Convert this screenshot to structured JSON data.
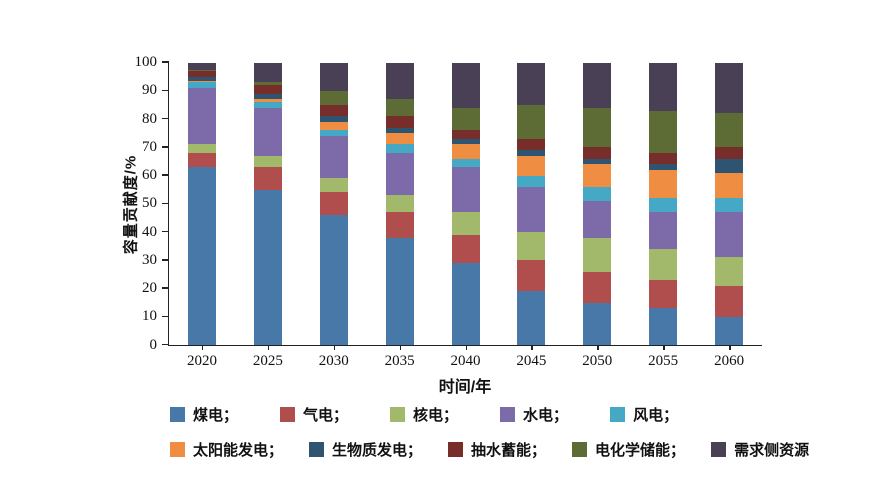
{
  "chart_data": {
    "type": "bar",
    "variant": "stacked-100-percent",
    "title": "",
    "xlabel": "时间/年",
    "ylabel": "容量贡献度/%",
    "ylim": [
      0,
      100
    ],
    "y_ticks": [
      0,
      10,
      20,
      30,
      40,
      50,
      60,
      70,
      80,
      90,
      100
    ],
    "grid": false,
    "legend_position": "bottom",
    "categories": [
      "2020",
      "2025",
      "2030",
      "2035",
      "2040",
      "2045",
      "2050",
      "2055",
      "2060"
    ],
    "series": [
      {
        "key": "coal",
        "name": "煤电",
        "legend_label": "煤电；",
        "color": "#4878a8",
        "values": [
          63,
          55,
          46,
          38,
          29,
          19,
          15,
          13,
          10
        ]
      },
      {
        "key": "gas",
        "name": "气电",
        "legend_label": "气电；",
        "color": "#b04e4e",
        "values": [
          5,
          8,
          8,
          9,
          10,
          11,
          11,
          10,
          11
        ]
      },
      {
        "key": "nuclear",
        "name": "核电",
        "legend_label": "核电；",
        "color": "#a2b86a",
        "values": [
          3,
          4,
          5,
          6,
          8,
          10,
          12,
          11,
          10
        ]
      },
      {
        "key": "hydro",
        "name": "水电",
        "legend_label": "水电；",
        "color": "#7d6aa8",
        "values": [
          20,
          17,
          15,
          15,
          16,
          16,
          13,
          13,
          16
        ]
      },
      {
        "key": "wind",
        "name": "风电",
        "legend_label": "风电；",
        "color": "#45a9c6",
        "values": [
          2,
          2,
          2,
          3,
          3,
          4,
          5,
          5,
          5
        ]
      },
      {
        "key": "solar",
        "name": "太阳能发电",
        "legend_label": "太阳能发电；",
        "color": "#ef8e43",
        "values": [
          0.5,
          1,
          3,
          4,
          5,
          7,
          8,
          10,
          9
        ]
      },
      {
        "key": "biomass",
        "name": "生物质发电",
        "legend_label": "生物质发电；",
        "color": "#2e5472",
        "values": [
          1.5,
          2,
          2,
          2,
          2,
          2,
          2,
          2,
          5
        ]
      },
      {
        "key": "pumped-storage",
        "name": "抽水蓄能",
        "legend_label": "抽水蓄能；",
        "color": "#772d2a",
        "values": [
          2,
          3,
          4,
          4,
          3,
          4,
          4,
          4,
          4
        ]
      },
      {
        "key": "electrochemical",
        "name": "电化学储能",
        "legend_label": "电化学储能；",
        "color": "#5d6b35",
        "values": [
          0.5,
          1,
          5,
          6,
          8,
          12,
          14,
          15,
          12
        ]
      },
      {
        "key": "demand-side",
        "name": "需求侧资源",
        "legend_label": "需求侧资源",
        "color": "#4a4055",
        "values": [
          2.5,
          7,
          10,
          13,
          16,
          15,
          16,
          17,
          18
        ]
      }
    ],
    "legend_rows": [
      [
        0,
        1,
        2,
        3,
        4
      ],
      [
        5,
        6,
        7,
        8,
        9
      ]
    ]
  }
}
